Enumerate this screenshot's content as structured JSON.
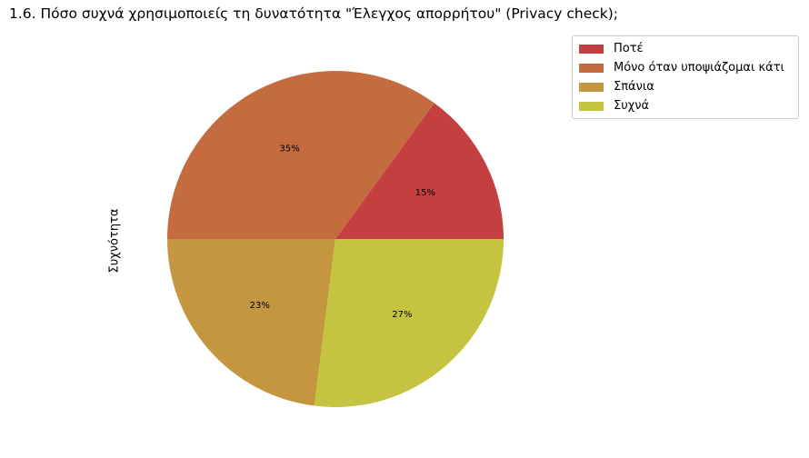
{
  "chart_data": {
    "type": "pie",
    "title": "1.6. Πόσο συχνά χρησιμοποιείς τη δυνατότητα \"Έλεγχος απορρήτου\" (Privacy check);",
    "ylabel": "Συχνότητα",
    "categories": [
      "Ποτέ",
      "Μόνο όταν υποψιάζομαι κάτι",
      "Σπάνια",
      "Συχνά"
    ],
    "values": [
      15,
      35,
      23,
      27
    ],
    "labels": [
      "15%",
      "35%",
      "23%",
      "27%"
    ],
    "colors": [
      "#c44040",
      "#c46c40",
      "#c49640",
      "#c4c440"
    ],
    "legend_position": "top-right"
  }
}
